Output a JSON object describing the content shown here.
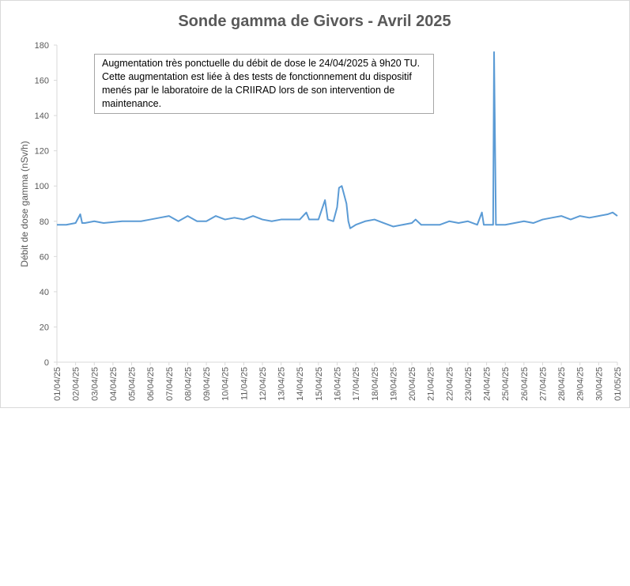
{
  "chart_data": {
    "type": "line",
    "title": "Sonde gamma de Givors - Avril 2025",
    "y_label": "Débit de dose gamma (nSv/h)",
    "annotation": "Augmentation très ponctuelle du débit de dose le 24/04/2025 à 9h20 TU.  Cette augmentation est liée à des tests de fonctionnement du dispositif menés par le laboratoire de la CRIIRAD lors de son intervention de maintenance.",
    "color": "#5b9bd5",
    "grid": false,
    "x": [
      0,
      0.5,
      1,
      1.25,
      1.35,
      1.5,
      2,
      2.5,
      3,
      3.5,
      4,
      4.5,
      5,
      5.5,
      6,
      6.5,
      7,
      7.5,
      8,
      8.5,
      9,
      9.5,
      10,
      10.5,
      11,
      11.5,
      12,
      12.5,
      13,
      13.35,
      13.5,
      14,
      14.35,
      14.5,
      14.8,
      15,
      15.1,
      15.25,
      15.5,
      15.6,
      15.7,
      16,
      16.5,
      17,
      17.5,
      18,
      18.5,
      19,
      19.2,
      19.5,
      20,
      20.5,
      21,
      21.5,
      22,
      22.5,
      22.75,
      22.85,
      23,
      23.35,
      23.4,
      23.5,
      24,
      24.5,
      25,
      25.5,
      26,
      26.5,
      27,
      27.5,
      28,
      28.5,
      29,
      29.5,
      29.75,
      30
    ],
    "values": [
      78,
      78,
      79,
      84,
      79,
      79,
      80,
      79,
      79.5,
      80,
      80,
      80,
      81,
      82,
      83,
      80,
      83,
      80,
      80,
      83,
      81,
      82,
      81,
      83,
      81,
      80,
      81,
      81,
      81,
      85,
      81,
      81,
      92,
      81,
      80,
      88,
      99,
      100,
      90,
      80,
      76,
      78,
      80,
      81,
      79,
      77,
      78,
      79,
      81,
      78,
      78,
      78,
      80,
      79,
      80,
      78,
      85,
      78,
      78,
      78,
      176,
      78,
      78,
      79,
      80,
      79,
      81,
      82,
      83,
      81,
      83,
      82,
      83,
      84,
      85,
      83
    ],
    "xlim": [
      0,
      30
    ],
    "xticks": [
      {
        "value": 0,
        "label": "01/04/25"
      },
      {
        "value": 1,
        "label": "02/04/25"
      },
      {
        "value": 2,
        "label": "03/04/25"
      },
      {
        "value": 3,
        "label": "04/04/25"
      },
      {
        "value": 4,
        "label": "05/04/25"
      },
      {
        "value": 5,
        "label": "06/04/25"
      },
      {
        "value": 6,
        "label": "07/04/25"
      },
      {
        "value": 7,
        "label": "08/04/25"
      },
      {
        "value": 8,
        "label": "09/04/25"
      },
      {
        "value": 9,
        "label": "10/04/25"
      },
      {
        "value": 10,
        "label": "11/04/25"
      },
      {
        "value": 11,
        "label": "12/04/25"
      },
      {
        "value": 12,
        "label": "13/04/25"
      },
      {
        "value": 13,
        "label": "14/04/25"
      },
      {
        "value": 14,
        "label": "15/04/25"
      },
      {
        "value": 15,
        "label": "16/04/25"
      },
      {
        "value": 16,
        "label": "17/04/25"
      },
      {
        "value": 17,
        "label": "18/04/25"
      },
      {
        "value": 18,
        "label": "19/04/25"
      },
      {
        "value": 19,
        "label": "20/04/25"
      },
      {
        "value": 20,
        "label": "21/04/25"
      },
      {
        "value": 21,
        "label": "22/04/25"
      },
      {
        "value": 22,
        "label": "23/04/25"
      },
      {
        "value": 23,
        "label": "24/04/25"
      },
      {
        "value": 24,
        "label": "25/04/25"
      },
      {
        "value": 25,
        "label": "26/04/25"
      },
      {
        "value": 26,
        "label": "27/04/25"
      },
      {
        "value": 27,
        "label": "28/04/25"
      },
      {
        "value": 28,
        "label": "29/04/25"
      },
      {
        "value": 29,
        "label": "30/04/25"
      },
      {
        "value": 30,
        "label": "01/05/25"
      }
    ],
    "ylim": [
      0,
      180
    ],
    "yticks": [
      0,
      20,
      40,
      60,
      80,
      100,
      120,
      140,
      160,
      180
    ]
  }
}
